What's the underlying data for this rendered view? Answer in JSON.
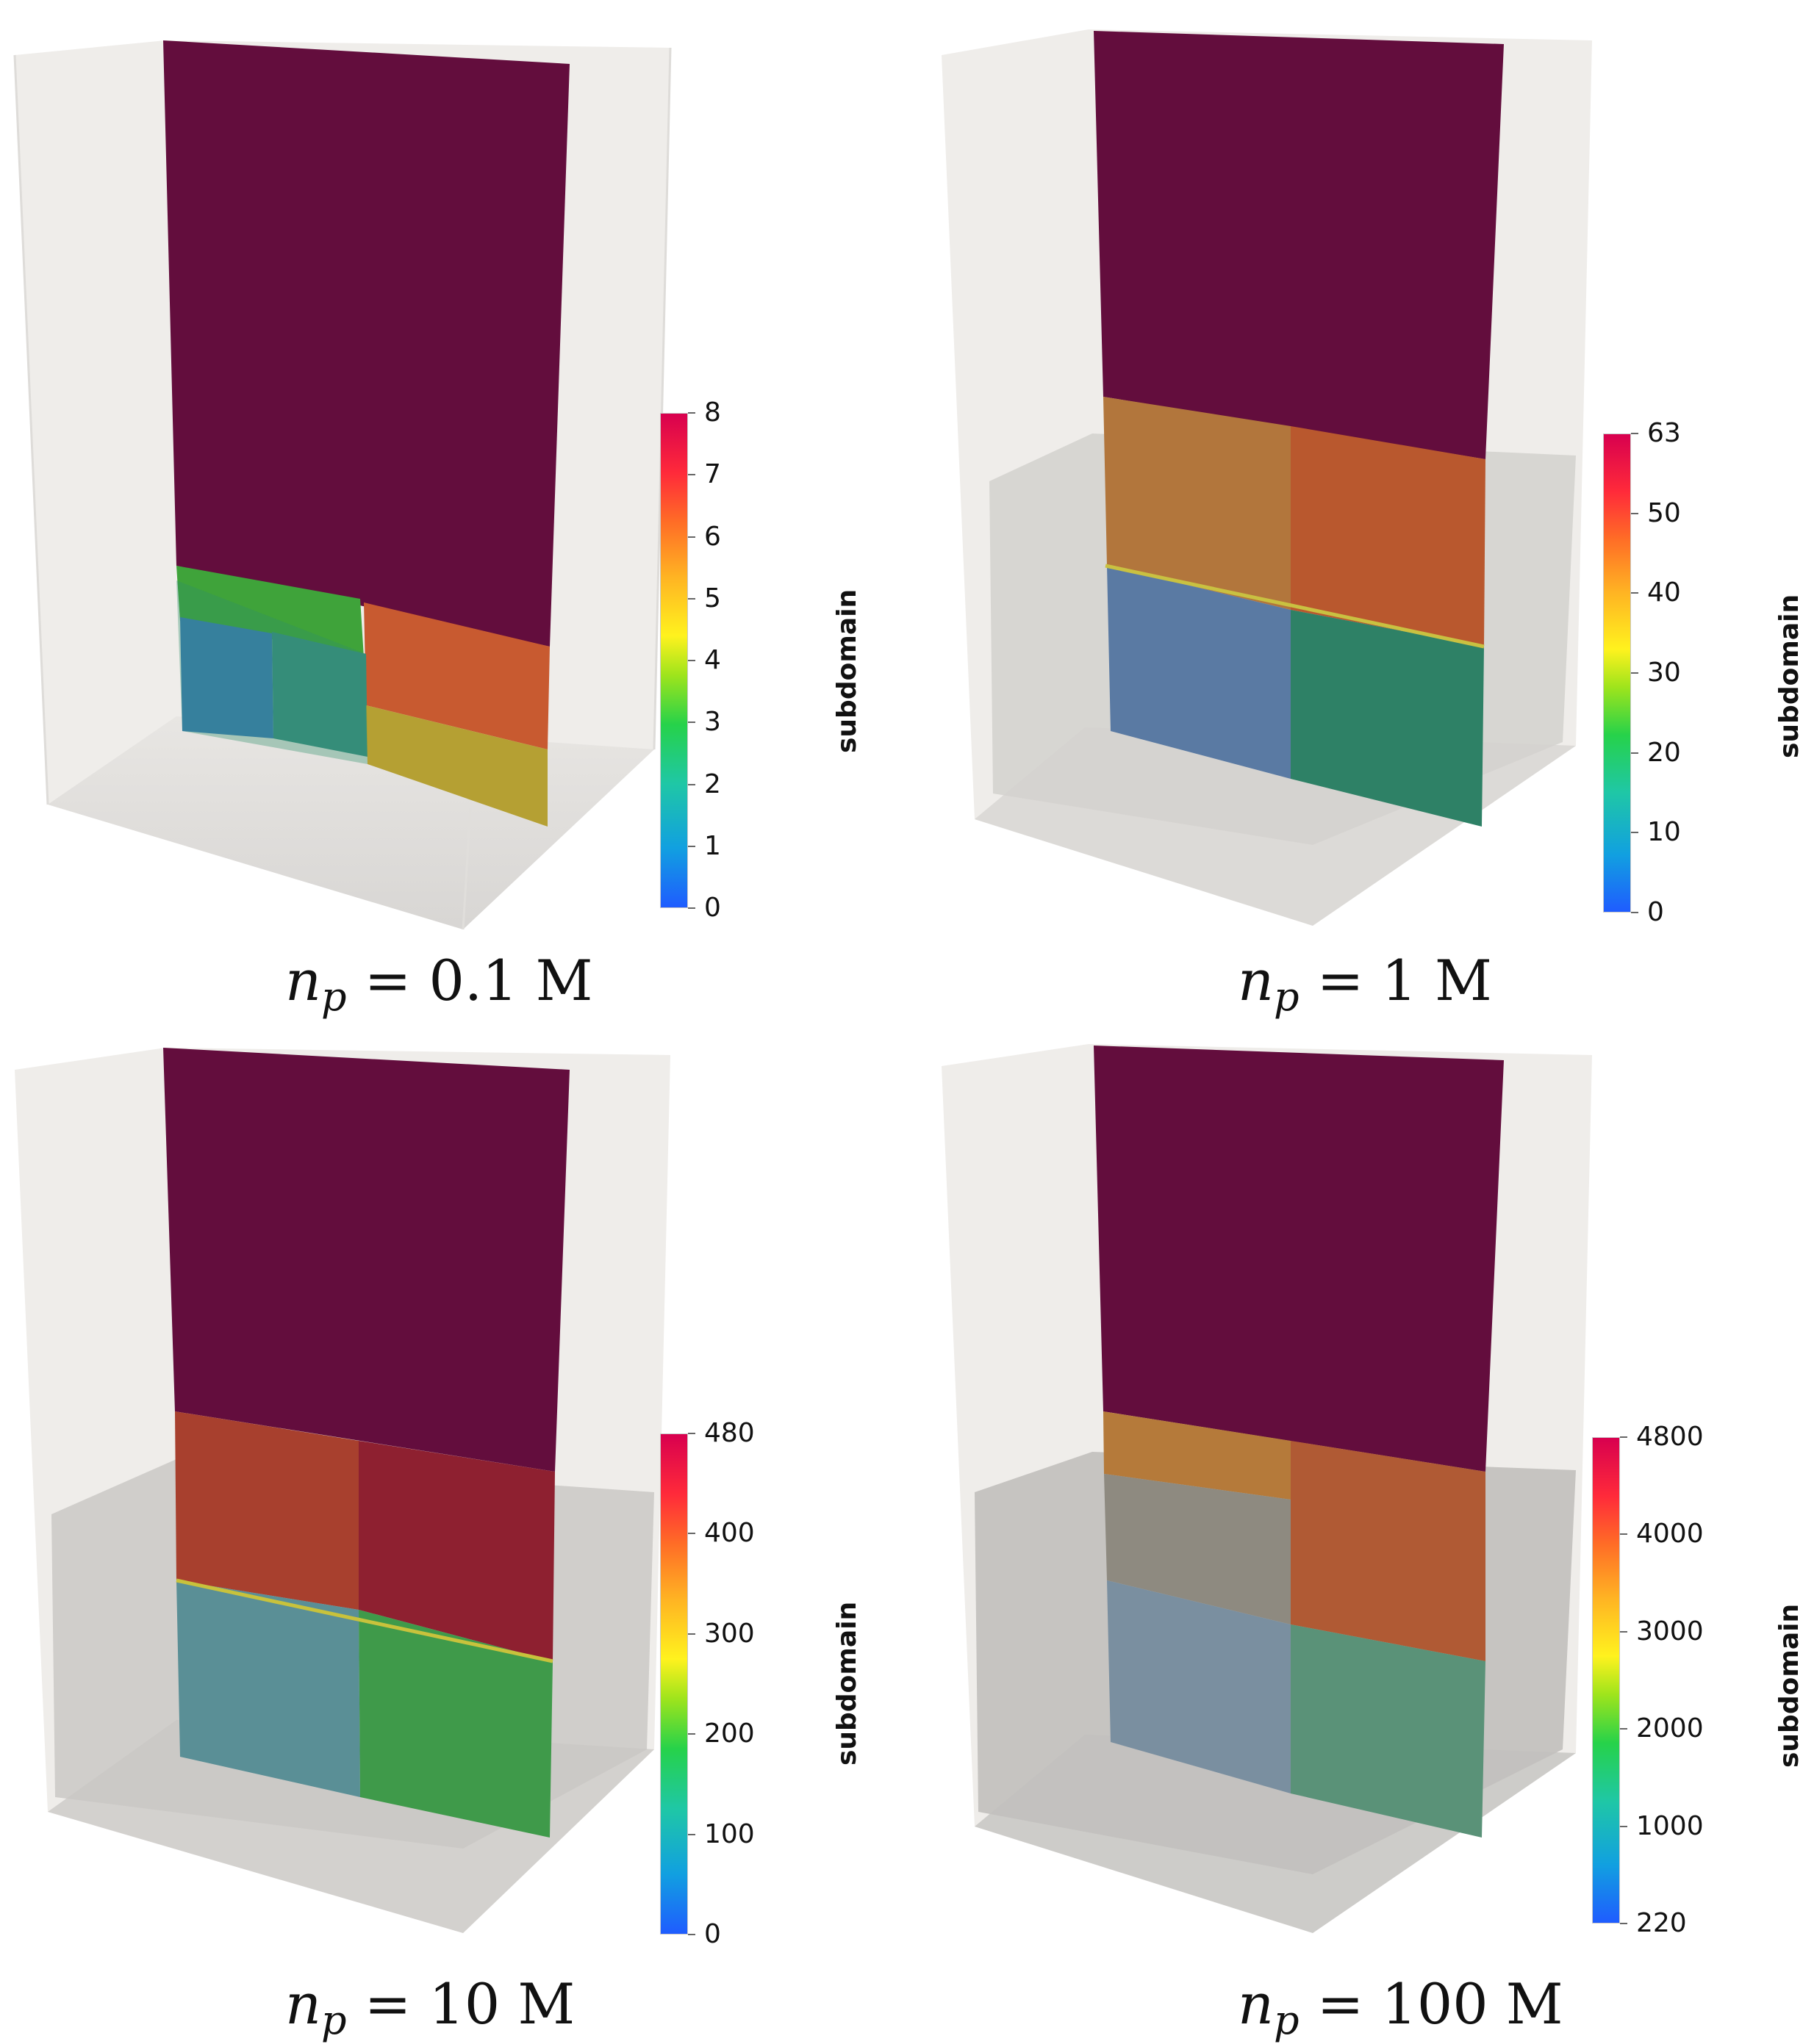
{
  "colorbar_title": "subdomain",
  "panels": [
    {
      "caption_var": "n",
      "caption_sub": "p",
      "caption_value": "= 0.1 M",
      "colorbar_ticks": [
        "0",
        "1",
        "2",
        "3",
        "4",
        "5",
        "6",
        "7",
        "8"
      ]
    },
    {
      "caption_var": "n",
      "caption_sub": "p",
      "caption_value": "= 1 M",
      "colorbar_ticks": [
        "0",
        "10",
        "20",
        "30",
        "40",
        "50",
        "63"
      ]
    },
    {
      "caption_var": "n",
      "caption_sub": "p",
      "caption_value": "= 10 M",
      "colorbar_ticks": [
        "0",
        "100",
        "200",
        "300",
        "400",
        "480"
      ]
    },
    {
      "caption_var": "n",
      "caption_sub": "p",
      "caption_value": "= 100 M",
      "colorbar_ticks": [
        "220",
        "1000",
        "2000",
        "3000",
        "4000",
        "4800"
      ]
    }
  ],
  "colors": {
    "top_region": "#630d3d",
    "box_face": "#efedea",
    "colormap_low": "#1f5cff",
    "colormap_high": "#d8004f"
  }
}
